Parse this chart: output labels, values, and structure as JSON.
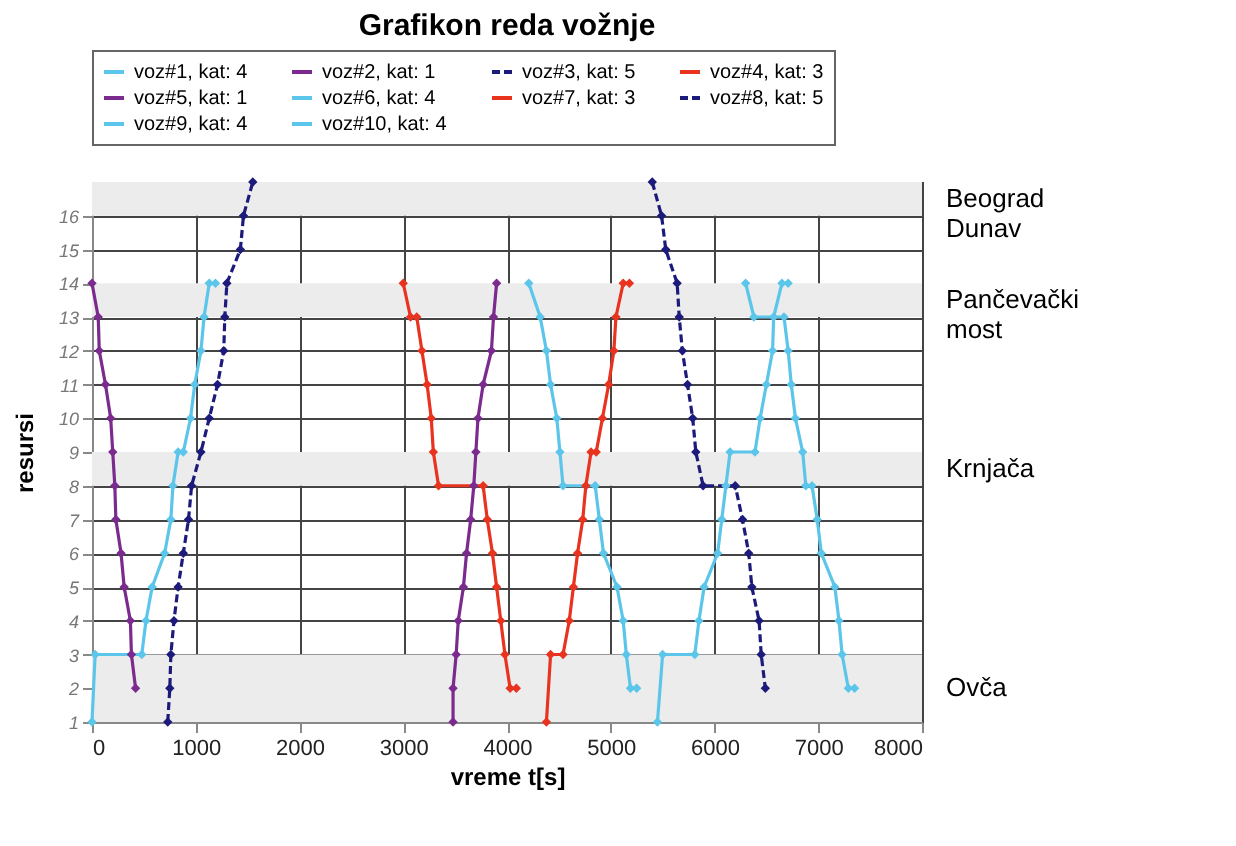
{
  "chart_data": {
    "type": "line",
    "title": "Grafikon reda vožnje",
    "xlabel": "vreme t[s]",
    "ylabel": "resursi",
    "xlim": [
      0,
      8000
    ],
    "xticks": [
      0,
      1000,
      2000,
      3000,
      4000,
      5000,
      6000,
      7000,
      8000
    ],
    "ylim": [
      1,
      17
    ],
    "yticks": [
      1,
      2,
      3,
      4,
      5,
      6,
      7,
      8,
      9,
      10,
      11,
      12,
      13,
      14,
      15,
      16
    ],
    "grid": true,
    "legend": "top",
    "marker": "diamond",
    "bands": [
      {
        "axis": "y",
        "from": 16,
        "to": 17,
        "label": "Beograd Dunav",
        "color": "#ececec"
      },
      {
        "axis": "y",
        "from": 13,
        "to": 14,
        "label": "Pančevački most",
        "color": "#ececec"
      },
      {
        "axis": "y",
        "from": 8,
        "to": 9,
        "label": "Krnjača",
        "color": "#ececec"
      },
      {
        "axis": "y",
        "from": 1,
        "to": 3,
        "label": "Ovča",
        "color": "#ececec"
      }
    ],
    "series": [
      {
        "name": "voz#1, kat: 4",
        "color": "#5bc6ea",
        "line_style": "solid",
        "x": [
          0,
          30,
          480,
          520,
          580,
          700,
          760,
          780,
          830,
          880,
          950,
          990,
          1050,
          1080,
          1130,
          1190
        ],
        "values": [
          1,
          3,
          3,
          4,
          5,
          6,
          7,
          8,
          9,
          9,
          10,
          11,
          12,
          13,
          14,
          14
        ]
      },
      {
        "name": "voz#2, kat: 1",
        "color": "#7b2a8e",
        "line_style": "solid",
        "x": [
          3480,
          3480,
          3510,
          3530,
          3580,
          3610,
          3650,
          3680,
          3700,
          3720,
          3770,
          3850,
          3870,
          3900
        ],
        "values": [
          1,
          2,
          3,
          4,
          5,
          6,
          7,
          8,
          9,
          10,
          11,
          12,
          13,
          14
        ]
      },
      {
        "name": "voz#3, kat: 5",
        "color": "#1c1a7a",
        "line_style": "dashed",
        "x": [
          730,
          750,
          760,
          790,
          830,
          880,
          930,
          960,
          1050,
          1130,
          1210,
          1270,
          1280,
          1300,
          1430,
          1460,
          1550
        ],
        "values": [
          1,
          2,
          3,
          4,
          5,
          6,
          7,
          8,
          9,
          10,
          11,
          12,
          13,
          14,
          15,
          16,
          17
        ]
      },
      {
        "name": "voz#4, kat: 3",
        "color": "#e8331f",
        "line_style": "solid",
        "x": [
          4380,
          4420,
          4540,
          4600,
          4640,
          4680,
          4730,
          4760,
          4810,
          4860,
          4920,
          4980,
          5030,
          5050,
          5120,
          5180
        ],
        "values": [
          1,
          3,
          3,
          4,
          5,
          6,
          7,
          8,
          9,
          9,
          10,
          11,
          12,
          13,
          14,
          14
        ]
      },
      {
        "name": "voz#5, kat: 1",
        "color": "#7b2a8e",
        "line_style": "solid",
        "x": [
          0,
          60,
          70,
          130,
          180,
          200,
          220,
          230,
          280,
          310,
          370,
          380,
          420
        ],
        "values": [
          14,
          13,
          12,
          11,
          10,
          9,
          8,
          7,
          6,
          5,
          4,
          3,
          2
        ]
      },
      {
        "name": "voz#6, kat: 4",
        "color": "#5bc6ea",
        "line_style": "solid",
        "x": [
          4210,
          4320,
          4380,
          4420,
          4480,
          4510,
          4540,
          4850,
          4890,
          4930,
          5060,
          5120,
          5150,
          5190,
          5250
        ],
        "values": [
          14,
          13,
          12,
          11,
          10,
          9,
          8,
          8,
          7,
          6,
          5,
          4,
          3,
          2,
          2
        ]
      },
      {
        "name": "voz#7, kat: 3",
        "color": "#e8331f",
        "line_style": "solid",
        "x": [
          3000,
          3070,
          3130,
          3180,
          3230,
          3270,
          3290,
          3340,
          3770,
          3810,
          3860,
          3900,
          3940,
          3980,
          4030,
          4090
        ],
        "values": [
          14,
          13,
          13,
          12,
          11,
          10,
          9,
          8,
          8,
          7,
          6,
          5,
          4,
          3,
          2,
          2
        ]
      },
      {
        "name": "voz#8, kat: 5",
        "color": "#1c1a7a",
        "line_style": "dashed",
        "x": [
          5400,
          5490,
          5530,
          5640,
          5660,
          5690,
          5740,
          5790,
          5820,
          5890,
          6200,
          6270,
          6330,
          6360,
          6430,
          6450,
          6490
        ],
        "values": [
          17,
          16,
          15,
          14,
          13,
          12,
          11,
          10,
          9,
          8,
          8,
          7,
          6,
          5,
          4,
          3,
          2
        ]
      },
      {
        "name": "voz#9, kat: 4",
        "color": "#5bc6ea",
        "line_style": "solid",
        "x": [
          5450,
          5500,
          5810,
          5850,
          5900,
          6030,
          6070,
          6110,
          6150,
          6390,
          6440,
          6500,
          6560,
          6570,
          6650,
          6710
        ],
        "values": [
          1,
          3,
          3,
          4,
          5,
          6,
          7,
          8,
          9,
          9,
          10,
          11,
          12,
          13,
          14,
          14
        ]
      },
      {
        "name": "voz#10, kat: 4",
        "color": "#5bc6ea",
        "line_style": "solid",
        "x": [
          6300,
          6380,
          6670,
          6710,
          6740,
          6780,
          6850,
          6880,
          6940,
          6990,
          7030,
          7160,
          7200,
          7230,
          7290,
          7350
        ],
        "values": [
          14,
          13,
          13,
          12,
          11,
          10,
          9,
          8,
          8,
          7,
          6,
          5,
          4,
          3,
          2,
          2
        ]
      }
    ]
  }
}
